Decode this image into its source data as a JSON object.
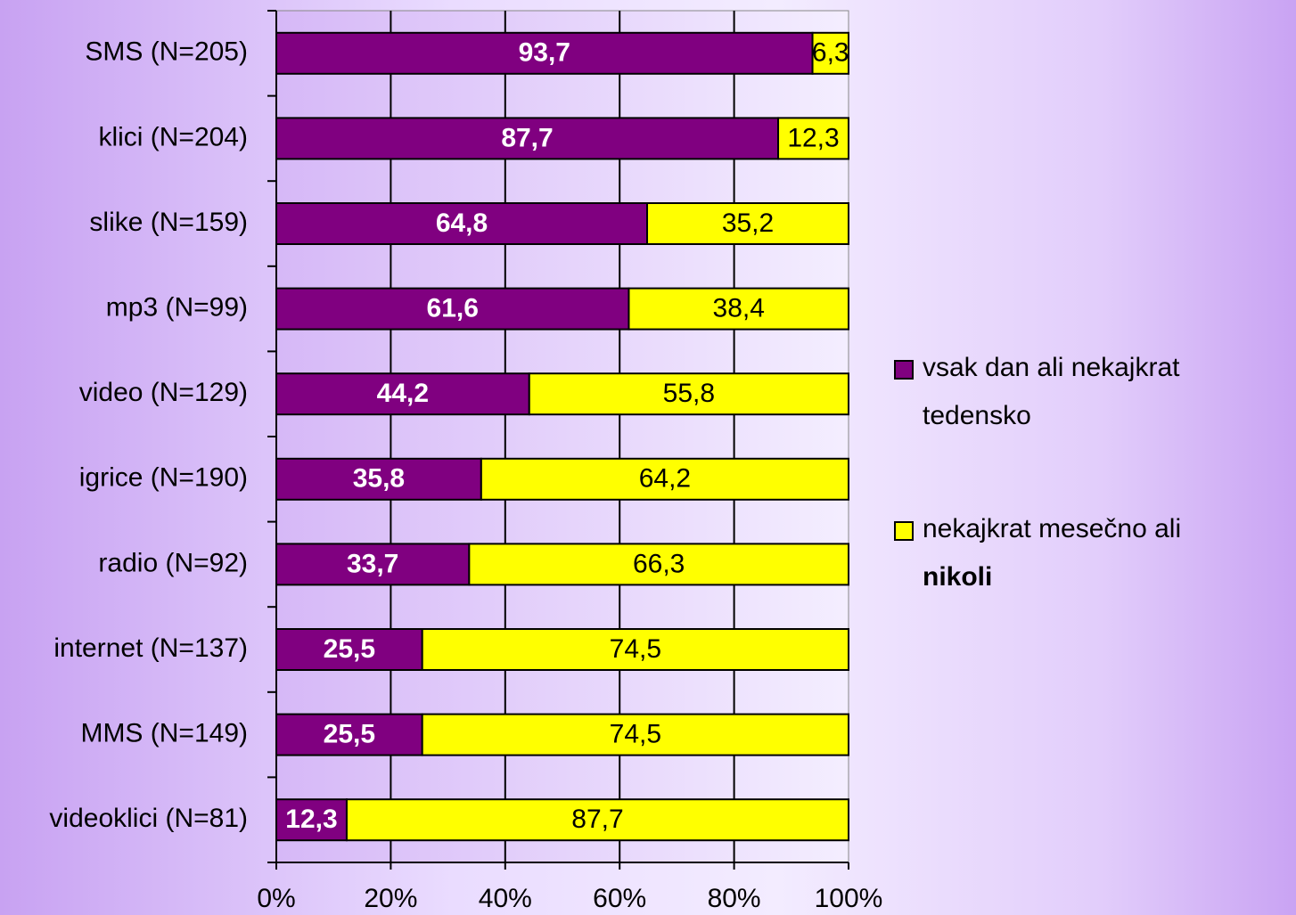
{
  "chart_data": {
    "type": "stacked-barh",
    "categories": [
      "SMS (N=205)",
      "klici (N=204)",
      "slike (N=159)",
      "mp3 (N=99)",
      "video (N=129)",
      "igrice (N=190)",
      "radio (N=92)",
      "internet (N=137)",
      "MMS (N=149)",
      "videoklici (N=81)"
    ],
    "series": [
      {
        "name": "vsak dan ali nekajkrat tedensko",
        "color": "#800080",
        "values": [
          93.7,
          87.7,
          64.8,
          61.6,
          44.2,
          35.8,
          33.7,
          25.5,
          25.5,
          12.3
        ],
        "value_labels": [
          "93,7",
          "87,7",
          "64,8",
          "61,6",
          "44,2",
          "35,8",
          "33,7",
          "25,5",
          "25,5",
          "12,3"
        ]
      },
      {
        "name": "nekajkrat mesečno ali nikoli",
        "color": "#ffff00",
        "values": [
          6.3,
          12.3,
          35.2,
          38.4,
          55.8,
          64.2,
          66.3,
          74.5,
          74.5,
          87.7
        ],
        "value_labels": [
          "6,3",
          "12,3",
          "35,2",
          "38,4",
          "55,8",
          "64,2",
          "66,3",
          "74,5",
          "74,5",
          "87,7"
        ]
      }
    ],
    "xlim": [
      0,
      100
    ],
    "xticks": [
      {
        "value": 0,
        "label": "0%"
      },
      {
        "value": 20,
        "label": "20%"
      },
      {
        "value": 40,
        "label": "40%"
      },
      {
        "value": 60,
        "label": "60%"
      },
      {
        "value": 80,
        "label": "80%"
      },
      {
        "value": 100,
        "label": "100%"
      }
    ],
    "grid": true,
    "legend": "right"
  }
}
